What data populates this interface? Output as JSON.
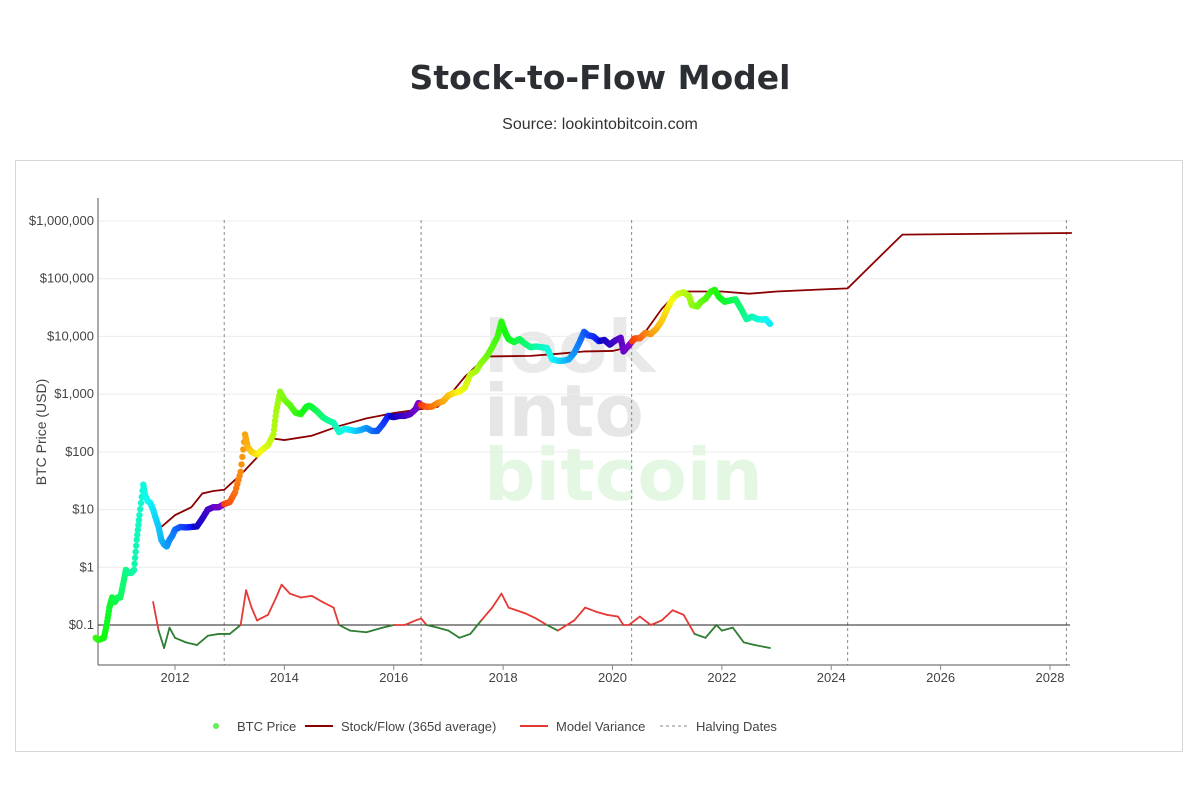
{
  "header": {
    "title": "Stock-to-Flow Model",
    "subtitle": "Source: lookintobitcoin.com"
  },
  "watermark": {
    "line1": "look",
    "line2": "into",
    "line3": "bitcoin"
  },
  "chart_data": {
    "type": "line",
    "title": "Stock-to-Flow Model",
    "subtitle": "Source: lookintobitcoin.com",
    "xlabel": "",
    "ylabel": "BTC Price (USD)",
    "yscale": "log",
    "ylim": [
      0.03,
      2000000
    ],
    "xlim": [
      2010.5,
      2028.4
    ],
    "y_ticks": [
      {
        "value": 0.1,
        "label": "$0.1"
      },
      {
        "value": 1,
        "label": "$1"
      },
      {
        "value": 10,
        "label": "$10"
      },
      {
        "value": 100,
        "label": "$100"
      },
      {
        "value": 1000,
        "label": "$1,000"
      },
      {
        "value": 10000,
        "label": "$10,000"
      },
      {
        "value": 100000,
        "label": "$100,000"
      },
      {
        "value": 1000000,
        "label": "$1,000,000"
      }
    ],
    "x_ticks": [
      {
        "value": 2012,
        "label": "2012"
      },
      {
        "value": 2014,
        "label": "2014"
      },
      {
        "value": 2016,
        "label": "2016"
      },
      {
        "value": 2018,
        "label": "2018"
      },
      {
        "value": 2020,
        "label": "2020"
      },
      {
        "value": 2022,
        "label": "2022"
      },
      {
        "value": 2024,
        "label": "2024"
      },
      {
        "value": 2026,
        "label": "2026"
      },
      {
        "value": 2028,
        "label": "2028"
      }
    ],
    "grid": true,
    "legend_position": "bottom",
    "reference_line": 0.1,
    "halving_dates": [
      2012.9,
      2016.5,
      2020.35,
      2024.3,
      2028.3
    ],
    "series": [
      {
        "name": "BTC Price",
        "kind": "markers-colored",
        "color": "#66ee55",
        "points": [
          [
            2010.55,
            0.06
          ],
          [
            2010.6,
            0.055
          ],
          [
            2010.7,
            0.06
          ],
          [
            2010.75,
            0.1
          ],
          [
            2010.8,
            0.2
          ],
          [
            2010.85,
            0.3
          ],
          [
            2010.9,
            0.25
          ],
          [
            2010.95,
            0.3
          ],
          [
            2011.0,
            0.3
          ],
          [
            2011.05,
            0.5
          ],
          [
            2011.1,
            0.9
          ],
          [
            2011.15,
            0.8
          ],
          [
            2011.2,
            0.8
          ],
          [
            2011.25,
            0.9
          ],
          [
            2011.3,
            3
          ],
          [
            2011.35,
            8
          ],
          [
            2011.42,
            27
          ],
          [
            2011.45,
            18
          ],
          [
            2011.5,
            14
          ],
          [
            2011.55,
            13
          ],
          [
            2011.6,
            10
          ],
          [
            2011.65,
            7
          ],
          [
            2011.7,
            5
          ],
          [
            2011.75,
            3
          ],
          [
            2011.8,
            2.5
          ],
          [
            2011.85,
            2.3
          ],
          [
            2011.9,
            3
          ],
          [
            2011.95,
            3.5
          ],
          [
            2012.0,
            4.5
          ],
          [
            2012.1,
            5
          ],
          [
            2012.2,
            4.9
          ],
          [
            2012.3,
            5
          ],
          [
            2012.4,
            5.1
          ],
          [
            2012.5,
            7
          ],
          [
            2012.6,
            10
          ],
          [
            2012.7,
            11
          ],
          [
            2012.8,
            11
          ],
          [
            2012.9,
            12.5
          ],
          [
            2013.0,
            13.5
          ],
          [
            2013.1,
            20
          ],
          [
            2013.2,
            45
          ],
          [
            2013.28,
            200
          ],
          [
            2013.33,
            120
          ],
          [
            2013.4,
            100
          ],
          [
            2013.5,
            90
          ],
          [
            2013.6,
            110
          ],
          [
            2013.7,
            130
          ],
          [
            2013.8,
            200
          ],
          [
            2013.85,
            500
          ],
          [
            2013.92,
            1100
          ],
          [
            2014.0,
            800
          ],
          [
            2014.1,
            650
          ],
          [
            2014.2,
            480
          ],
          [
            2014.3,
            450
          ],
          [
            2014.4,
            600
          ],
          [
            2014.45,
            630
          ],
          [
            2014.5,
            600
          ],
          [
            2014.6,
            500
          ],
          [
            2014.7,
            400
          ],
          [
            2014.8,
            350
          ],
          [
            2014.9,
            320
          ],
          [
            2015.0,
            220
          ],
          [
            2015.1,
            250
          ],
          [
            2015.2,
            240
          ],
          [
            2015.3,
            230
          ],
          [
            2015.4,
            240
          ],
          [
            2015.5,
            260
          ],
          [
            2015.6,
            230
          ],
          [
            2015.7,
            230
          ],
          [
            2015.8,
            300
          ],
          [
            2015.9,
            420
          ],
          [
            2016.0,
            400
          ],
          [
            2016.1,
            420
          ],
          [
            2016.2,
            420
          ],
          [
            2016.3,
            450
          ],
          [
            2016.4,
            550
          ],
          [
            2016.45,
            700
          ],
          [
            2016.5,
            650
          ],
          [
            2016.6,
            600
          ],
          [
            2016.7,
            610
          ],
          [
            2016.8,
            700
          ],
          [
            2016.9,
            750
          ],
          [
            2017.0,
            950
          ],
          [
            2017.1,
            1050
          ],
          [
            2017.2,
            1100
          ],
          [
            2017.3,
            1300
          ],
          [
            2017.4,
            2200
          ],
          [
            2017.5,
            2500
          ],
          [
            2017.6,
            3500
          ],
          [
            2017.7,
            4500
          ],
          [
            2017.8,
            6500
          ],
          [
            2017.9,
            10000
          ],
          [
            2017.97,
            18000
          ],
          [
            2018.05,
            11000
          ],
          [
            2018.1,
            9000
          ],
          [
            2018.2,
            8000
          ],
          [
            2018.3,
            9000
          ],
          [
            2018.4,
            7500
          ],
          [
            2018.5,
            6500
          ],
          [
            2018.6,
            6700
          ],
          [
            2018.7,
            6500
          ],
          [
            2018.8,
            6300
          ],
          [
            2018.9,
            4000
          ],
          [
            2019.0,
            3800
          ],
          [
            2019.1,
            3800
          ],
          [
            2019.2,
            4000
          ],
          [
            2019.3,
            5200
          ],
          [
            2019.4,
            8000
          ],
          [
            2019.48,
            12000
          ],
          [
            2019.55,
            10500
          ],
          [
            2019.65,
            10000
          ],
          [
            2019.75,
            8300
          ],
          [
            2019.85,
            8700
          ],
          [
            2019.95,
            7200
          ],
          [
            2020.05,
            8500
          ],
          [
            2020.15,
            9500
          ],
          [
            2020.2,
            5500
          ],
          [
            2020.3,
            7000
          ],
          [
            2020.4,
            9200
          ],
          [
            2020.5,
            9300
          ],
          [
            2020.6,
            11500
          ],
          [
            2020.7,
            11000
          ],
          [
            2020.8,
            13500
          ],
          [
            2020.9,
            18500
          ],
          [
            2021.0,
            30000
          ],
          [
            2021.1,
            45000
          ],
          [
            2021.2,
            55000
          ],
          [
            2021.3,
            58000
          ],
          [
            2021.4,
            50000
          ],
          [
            2021.45,
            35000
          ],
          [
            2021.55,
            33000
          ],
          [
            2021.62,
            40000
          ],
          [
            2021.7,
            45000
          ],
          [
            2021.8,
            60000
          ],
          [
            2021.87,
            64000
          ],
          [
            2021.95,
            48000
          ],
          [
            2022.05,
            40000
          ],
          [
            2022.15,
            42000
          ],
          [
            2022.25,
            44000
          ],
          [
            2022.35,
            30000
          ],
          [
            2022.45,
            20000
          ],
          [
            2022.55,
            22000
          ],
          [
            2022.65,
            20000
          ],
          [
            2022.75,
            19500
          ],
          [
            2022.8,
            20000
          ],
          [
            2022.88,
            16500
          ]
        ]
      },
      {
        "name": "Stock/Flow (365d average)",
        "kind": "line",
        "color": "#8b0000",
        "points": [
          [
            2011.75,
            5
          ],
          [
            2012.0,
            8
          ],
          [
            2012.3,
            11
          ],
          [
            2012.5,
            19
          ],
          [
            2012.7,
            21
          ],
          [
            2012.9,
            22
          ],
          [
            2013.2,
            40
          ],
          [
            2013.5,
            80
          ],
          [
            2013.8,
            170
          ],
          [
            2014.0,
            160
          ],
          [
            2014.5,
            190
          ],
          [
            2015.0,
            280
          ],
          [
            2015.5,
            380
          ],
          [
            2016.0,
            470
          ],
          [
            2016.5,
            550
          ],
          [
            2016.8,
            600
          ],
          [
            2017.0,
            900
          ],
          [
            2017.3,
            2000
          ],
          [
            2017.7,
            4500
          ],
          [
            2018.5,
            4600
          ],
          [
            2019.0,
            5000
          ],
          [
            2019.5,
            5500
          ],
          [
            2020.0,
            5600
          ],
          [
            2020.3,
            6500
          ],
          [
            2020.6,
            12000
          ],
          [
            2020.9,
            30000
          ],
          [
            2021.2,
            60000
          ],
          [
            2021.6,
            60000
          ],
          [
            2022.0,
            60000
          ],
          [
            2022.5,
            55000
          ],
          [
            2023.0,
            60000
          ],
          [
            2023.8,
            65000
          ],
          [
            2024.3,
            68000
          ],
          [
            2024.8,
            200000
          ],
          [
            2025.3,
            580000
          ],
          [
            2028.4,
            620000
          ]
        ]
      },
      {
        "name": "Model Variance",
        "kind": "line-two-tone",
        "color": "#e53935",
        "color_below": "#2e7d32",
        "points": [
          [
            2011.6,
            0.25
          ],
          [
            2011.7,
            0.08
          ],
          [
            2011.8,
            0.04
          ],
          [
            2011.9,
            0.09
          ],
          [
            2012.0,
            0.06
          ],
          [
            2012.2,
            0.05
          ],
          [
            2012.4,
            0.045
          ],
          [
            2012.6,
            0.065
          ],
          [
            2012.8,
            0.07
          ],
          [
            2013.0,
            0.07
          ],
          [
            2013.2,
            0.1
          ],
          [
            2013.3,
            0.4
          ],
          [
            2013.4,
            0.2
          ],
          [
            2013.5,
            0.12
          ],
          [
            2013.7,
            0.15
          ],
          [
            2013.85,
            0.3
          ],
          [
            2013.95,
            0.5
          ],
          [
            2014.1,
            0.35
          ],
          [
            2014.3,
            0.3
          ],
          [
            2014.5,
            0.32
          ],
          [
            2014.7,
            0.25
          ],
          [
            2014.9,
            0.2
          ],
          [
            2015.0,
            0.1
          ],
          [
            2015.2,
            0.08
          ],
          [
            2015.5,
            0.075
          ],
          [
            2015.8,
            0.09
          ],
          [
            2016.0,
            0.1
          ],
          [
            2016.2,
            0.1
          ],
          [
            2016.4,
            0.12
          ],
          [
            2016.5,
            0.13
          ],
          [
            2016.6,
            0.1
          ],
          [
            2016.8,
            0.09
          ],
          [
            2017.0,
            0.08
          ],
          [
            2017.2,
            0.06
          ],
          [
            2017.4,
            0.07
          ],
          [
            2017.6,
            0.12
          ],
          [
            2017.8,
            0.2
          ],
          [
            2017.97,
            0.35
          ],
          [
            2018.1,
            0.2
          ],
          [
            2018.4,
            0.16
          ],
          [
            2018.6,
            0.13
          ],
          [
            2018.8,
            0.1
          ],
          [
            2019.0,
            0.08
          ],
          [
            2019.3,
            0.12
          ],
          [
            2019.5,
            0.2
          ],
          [
            2019.7,
            0.17
          ],
          [
            2019.9,
            0.15
          ],
          [
            2020.1,
            0.14
          ],
          [
            2020.2,
            0.1
          ],
          [
            2020.3,
            0.1
          ],
          [
            2020.5,
            0.14
          ],
          [
            2020.7,
            0.1
          ],
          [
            2020.9,
            0.12
          ],
          [
            2021.1,
            0.18
          ],
          [
            2021.3,
            0.15
          ],
          [
            2021.5,
            0.07
          ],
          [
            2021.7,
            0.06
          ],
          [
            2021.9,
            0.1
          ],
          [
            2022.0,
            0.08
          ],
          [
            2022.2,
            0.09
          ],
          [
            2022.4,
            0.05
          ],
          [
            2022.6,
            0.045
          ],
          [
            2022.88,
            0.04
          ]
        ]
      },
      {
        "name": "Halving Dates",
        "kind": "vline-dashed",
        "color": "#888888",
        "x": [
          2012.9,
          2016.5,
          2020.35,
          2024.3,
          2028.3
        ]
      }
    ]
  },
  "legend": {
    "items": [
      {
        "label": "BTC Price"
      },
      {
        "label": "Stock/Flow (365d average)"
      },
      {
        "label": "Model Variance"
      },
      {
        "label": "Halving Dates"
      }
    ]
  }
}
